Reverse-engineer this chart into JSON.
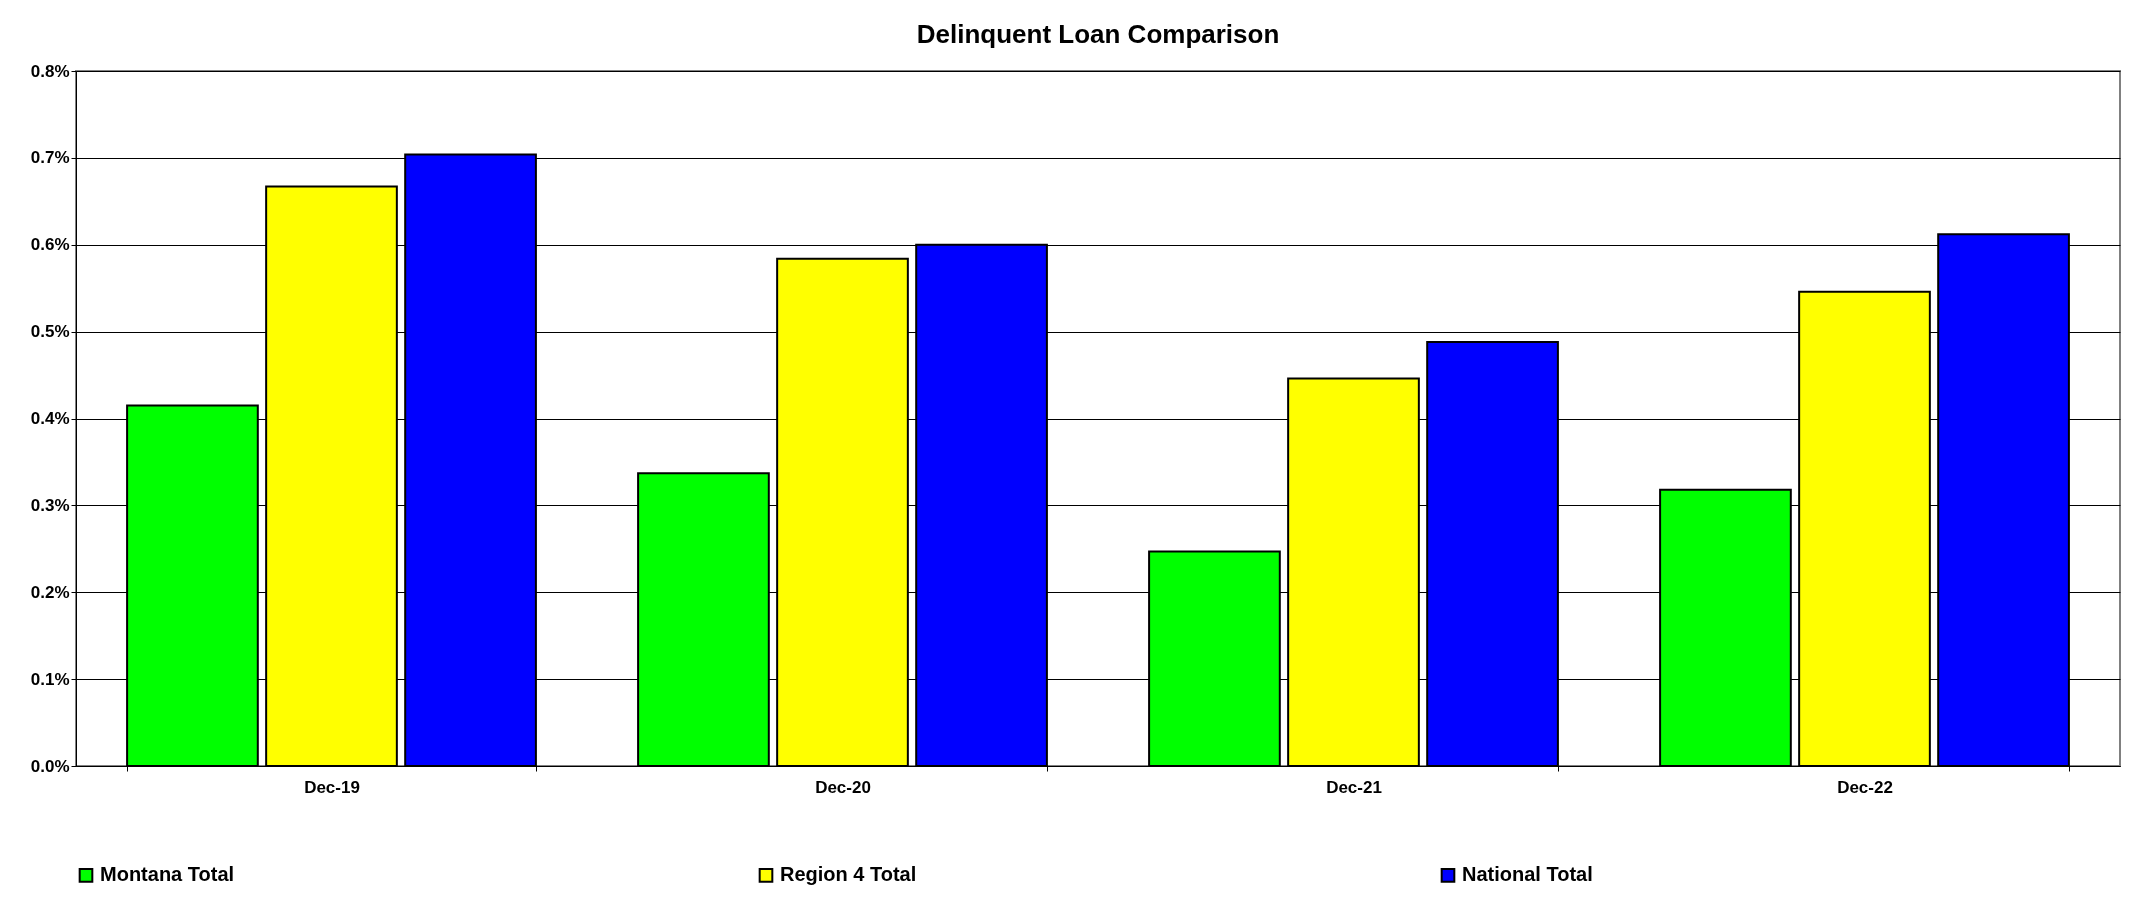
{
  "chart_data": {
    "type": "bar",
    "title": "Delinquent Loan Comparison",
    "categories": [
      "Dec-19",
      "Dec-20",
      "Dec-21",
      "Dec-22"
    ],
    "series": [
      {
        "name": "Montana Total",
        "color": "#00ff00",
        "values": [
          0.415,
          0.337,
          0.247,
          0.318
        ]
      },
      {
        "name": "Region 4 Total",
        "color": "#ffff00",
        "values": [
          0.667,
          0.584,
          0.446,
          0.546
        ]
      },
      {
        "name": "National Total",
        "color": "#0000ff",
        "values": [
          0.704,
          0.6,
          0.488,
          0.612
        ]
      }
    ],
    "ylim": [
      0,
      0.8
    ],
    "yticks": [
      {
        "value": 0,
        "label": "0.0%"
      },
      {
        "value": 0.1,
        "label": "0.1%"
      },
      {
        "value": 0.2,
        "label": "0.2%"
      },
      {
        "value": 0.3,
        "label": "0.3%"
      },
      {
        "value": 0.4,
        "label": "0.4%"
      },
      {
        "value": 0.5,
        "label": "0.5%"
      },
      {
        "value": 0.6,
        "label": "0.6%"
      },
      {
        "value": 0.7,
        "label": "0.7%"
      },
      {
        "value": 0.8,
        "label": "0.8%"
      }
    ],
    "grid": "y",
    "legend": "bottom"
  }
}
